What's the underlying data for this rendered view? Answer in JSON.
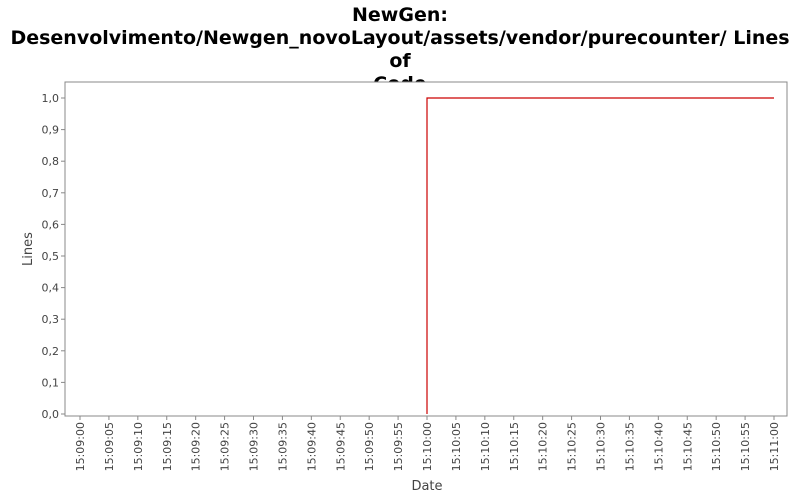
{
  "title_lines": [
    "NewGen:",
    "Desenvolvimento/Newgen_novoLayout/assets/vendor/purecounter/ Lines of",
    "Code"
  ],
  "chart_data": {
    "type": "line",
    "title": "NewGen: Desenvolvimento/Newgen_novoLayout/assets/vendor/purecounter/ Lines of Code",
    "xlabel": "Date",
    "ylabel": "Lines",
    "ylim": [
      0,
      1
    ],
    "yticks": [
      "0,0",
      "0,1",
      "0,2",
      "0,3",
      "0,4",
      "0,5",
      "0,6",
      "0,7",
      "0,8",
      "0,9",
      "1,0"
    ],
    "xticks": [
      "15:09:00",
      "15:09:05",
      "15:09:10",
      "15:09:15",
      "15:09:20",
      "15:09:25",
      "15:09:30",
      "15:09:35",
      "15:09:40",
      "15:09:45",
      "15:09:50",
      "15:09:55",
      "15:10:00",
      "15:10:05",
      "15:10:10",
      "15:10:15",
      "15:10:20",
      "15:10:25",
      "15:10:30",
      "15:10:35",
      "15:10:40",
      "15:10:45",
      "15:10:50",
      "15:10:55",
      "15:11:00"
    ],
    "xlim": [
      "15:08:55",
      "15:11:02"
    ],
    "grid": false,
    "series": [
      {
        "color": "#cc0000",
        "step": true,
        "points": [
          {
            "x": "15:10:00",
            "y": 0
          },
          {
            "x": "15:10:00",
            "y": 1
          },
          {
            "x": "15:11:00",
            "y": 1
          }
        ]
      }
    ]
  }
}
